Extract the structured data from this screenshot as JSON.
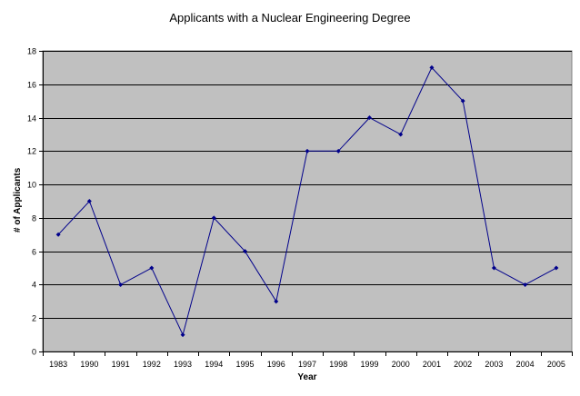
{
  "chart_data": {
    "type": "line",
    "title": "Applicants with a Nuclear Engineering Degree",
    "xlabel": "Year",
    "ylabel": "# of Applicants",
    "categories": [
      "1983",
      "1990",
      "1991",
      "1992",
      "1993",
      "1994",
      "1995",
      "1996",
      "1997",
      "1998",
      "1999",
      "2000",
      "2001",
      "2002",
      "2003",
      "2004",
      "2005"
    ],
    "series": [
      {
        "values": [
          7,
          9,
          4,
          5,
          1,
          8,
          6,
          3,
          12,
          12,
          14,
          13,
          17,
          15,
          5,
          4,
          5
        ]
      }
    ],
    "ylim": [
      0,
      18
    ],
    "yticks": [
      0,
      2,
      4,
      6,
      8,
      10,
      12,
      14,
      16,
      18
    ],
    "grid": "horizontal",
    "legend": "none",
    "colors": {
      "plot_bg": "#c0c0c0",
      "line": "#00008b",
      "grid": "#000000",
      "border": "#808080"
    }
  }
}
